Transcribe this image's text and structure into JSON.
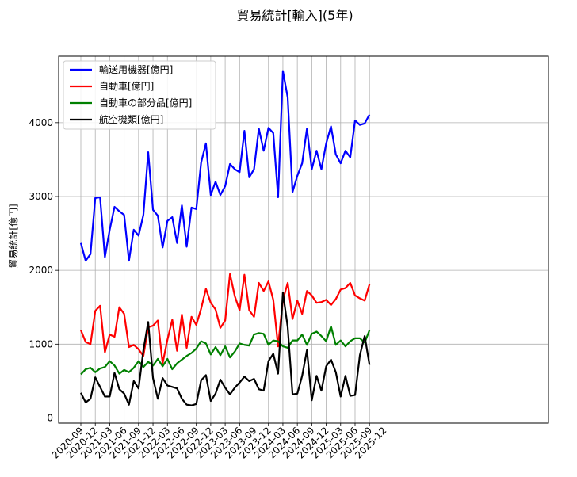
{
  "chart_data": {
    "type": "line",
    "title": "貿易統計[輸入](5年)",
    "xlabel": "",
    "ylabel": "貿易統計[億円]",
    "ylim": [
      -70,
      4900
    ],
    "yticks": [
      0,
      1000,
      2000,
      3000,
      4000
    ],
    "grid": true,
    "legend_position": "top-left",
    "xtick_labels": [
      "2020-09",
      "2020-12",
      "2021-03",
      "2021-06",
      "2021-09",
      "2021-12",
      "2022-03",
      "2022-06",
      "2022-09",
      "2022-12",
      "2023-03",
      "2023-06",
      "2023-09",
      "2023-12",
      "2024-03",
      "2024-06",
      "2024-09",
      "2024-12",
      "2025-03",
      "2025-06",
      "2025-09",
      "2025-12"
    ],
    "x": [
      "2020-09",
      "2020-10",
      "2020-11",
      "2020-12",
      "2021-01",
      "2021-02",
      "2021-03",
      "2021-04",
      "2021-05",
      "2021-06",
      "2021-07",
      "2021-08",
      "2021-09",
      "2021-10",
      "2021-11",
      "2021-12",
      "2022-01",
      "2022-02",
      "2022-03",
      "2022-04",
      "2022-05",
      "2022-06",
      "2022-07",
      "2022-08",
      "2022-09",
      "2022-10",
      "2022-11",
      "2022-12",
      "2023-01",
      "2023-02",
      "2023-03",
      "2023-04",
      "2023-05",
      "2023-06",
      "2023-07",
      "2023-08",
      "2023-09",
      "2023-10",
      "2023-11",
      "2023-12",
      "2024-01",
      "2024-02",
      "2024-03",
      "2024-04",
      "2024-05",
      "2024-06",
      "2024-07",
      "2024-08",
      "2024-09",
      "2024-10",
      "2024-11",
      "2024-12",
      "2025-01",
      "2025-02",
      "2025-03",
      "2025-04",
      "2025-05",
      "2025-06",
      "2025-07",
      "2025-08",
      "2025-09"
    ],
    "series": [
      {
        "name": "輸送用機器[億円]",
        "color": "#0000ff",
        "values": [
          2370,
          2130,
          2220,
          2980,
          2990,
          2180,
          2550,
          2860,
          2800,
          2750,
          2130,
          2550,
          2470,
          2750,
          3600,
          2820,
          2740,
          2310,
          2670,
          2720,
          2370,
          2880,
          2320,
          2850,
          2830,
          3460,
          3720,
          3020,
          3200,
          3020,
          3140,
          3440,
          3370,
          3330,
          3890,
          3260,
          3370,
          3920,
          3620,
          3930,
          3860,
          2990,
          4700,
          4340,
          3060,
          3280,
          3450,
          3920,
          3370,
          3620,
          3370,
          3720,
          3950,
          3570,
          3450,
          3620,
          3530,
          4030,
          3970,
          3990,
          4110
        ]
      },
      {
        "name": "自動車[億円]",
        "color": "#ff0000",
        "values": [
          1190,
          1030,
          1000,
          1450,
          1520,
          890,
          1130,
          1100,
          1500,
          1410,
          960,
          990,
          930,
          840,
          1230,
          1250,
          1320,
          740,
          1060,
          1330,
          910,
          1400,
          950,
          1370,
          1260,
          1480,
          1750,
          1560,
          1470,
          1220,
          1320,
          1950,
          1650,
          1460,
          1940,
          1460,
          1370,
          1830,
          1720,
          1850,
          1600,
          970,
          1600,
          1830,
          1340,
          1590,
          1410,
          1720,
          1660,
          1560,
          1570,
          1600,
          1530,
          1610,
          1740,
          1760,
          1830,
          1660,
          1620,
          1590,
          1810
        ]
      },
      {
        "name": "自動車の部分品[億円]",
        "color": "#008000",
        "values": [
          590,
          660,
          680,
          620,
          670,
          690,
          770,
          710,
          600,
          650,
          620,
          680,
          770,
          690,
          760,
          710,
          800,
          700,
          800,
          660,
          740,
          790,
          840,
          880,
          940,
          1040,
          1010,
          860,
          960,
          850,
          970,
          820,
          900,
          1010,
          990,
          980,
          1130,
          1150,
          1140,
          990,
          1050,
          1040,
          970,
          950,
          1050,
          1050,
          1130,
          990,
          1140,
          1170,
          1110,
          1040,
          1240,
          990,
          1050,
          970,
          1040,
          1080,
          1080,
          1020,
          1190
        ]
      },
      {
        "name": "航空機類[億円]",
        "color": "#000000",
        "values": [
          340,
          210,
          260,
          550,
          420,
          290,
          290,
          610,
          390,
          330,
          180,
          500,
          400,
          920,
          1300,
          540,
          260,
          540,
          440,
          420,
          400,
          260,
          180,
          170,
          190,
          510,
          580,
          230,
          330,
          520,
          410,
          320,
          410,
          480,
          560,
          500,
          530,
          390,
          370,
          770,
          870,
          600,
          1700,
          1230,
          320,
          330,
          570,
          920,
          240,
          570,
          370,
          700,
          790,
          620,
          290,
          570,
          300,
          310,
          850,
          1110,
          720
        ]
      }
    ]
  }
}
